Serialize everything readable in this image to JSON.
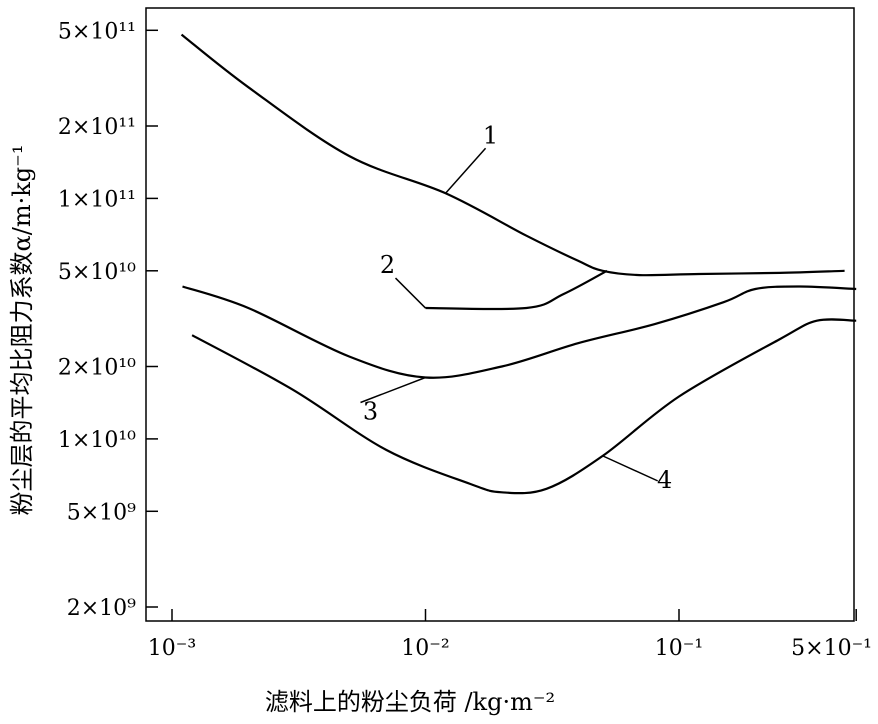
{
  "chart_data": {
    "type": "line",
    "title": "",
    "xlabel": "滤料上的粉尘负荷 /kg·m⁻²",
    "ylabel": "粉尘层的平均比阻力系数α/m·kg⁻¹",
    "x_scale": "log",
    "y_scale": "log",
    "x_ticks": [
      {
        "label": "10⁻³",
        "value": 0.001
      },
      {
        "label": "10⁻²",
        "value": 0.01
      },
      {
        "label": "10⁻¹",
        "value": 0.1
      },
      {
        "label": "5×10⁻¹",
        "value": 0.5
      }
    ],
    "y_ticks": [
      {
        "label": "5×10¹¹",
        "value": 500000000000.0
      },
      {
        "label": "2×10¹¹",
        "value": 200000000000.0
      },
      {
        "label": "1×10¹¹",
        "value": 100000000000.0
      },
      {
        "label": "5×10¹⁰",
        "value": 50000000000.0
      },
      {
        "label": "2×10¹⁰",
        "value": 20000000000.0
      },
      {
        "label": "1×10¹⁰",
        "value": 10000000000.0
      },
      {
        "label": "5×10⁹",
        "value": 5000000000.0
      },
      {
        "label": "2×10⁹",
        "value": 2000000000.0
      }
    ],
    "grid": false,
    "legend": "none",
    "series": [
      {
        "label": "1",
        "points": [
          [
            0.00109,
            480000000000.0
          ],
          [
            0.002,
            290000000000.0
          ],
          [
            0.005,
            150000000000.0
          ],
          [
            0.012,
            105000000000.0
          ],
          [
            0.025,
            70000000000.0
          ],
          [
            0.04,
            55000000000.0
          ],
          [
            0.05,
            50000000000.0
          ],
          [
            0.07,
            48000000000.0
          ],
          [
            0.12,
            48500000000.0
          ],
          [
            0.25,
            49000000000.0
          ],
          [
            0.45,
            50000000000.0
          ]
        ]
      },
      {
        "label": "2",
        "points": [
          [
            0.01,
            35000000000.0
          ],
          [
            0.025,
            35000000000.0
          ],
          [
            0.035,
            40000000000.0
          ],
          [
            0.052,
            50000000000.0
          ]
        ]
      },
      {
        "label": "3",
        "points": [
          [
            0.0011,
            43000000000.0
          ],
          [
            0.002,
            35000000000.0
          ],
          [
            0.005,
            22000000000.0
          ],
          [
            0.01,
            18000000000.0
          ],
          [
            0.02,
            20000000000.0
          ],
          [
            0.04,
            25000000000.0
          ],
          [
            0.08,
            30000000000.0
          ],
          [
            0.15,
            37000000000.0
          ],
          [
            0.2,
            42000000000.0
          ],
          [
            0.3,
            43000000000.0
          ],
          [
            0.5,
            42000000000.0
          ]
        ]
      },
      {
        "label": "4",
        "points": [
          [
            0.0012,
            27000000000.0
          ],
          [
            0.003,
            16000000000.0
          ],
          [
            0.007,
            9000000000.0
          ],
          [
            0.015,
            6500000000.0
          ],
          [
            0.02,
            6000000000.0
          ],
          [
            0.03,
            6200000000.0
          ],
          [
            0.05,
            8500000000.0
          ],
          [
            0.1,
            15000000000.0
          ],
          [
            0.25,
            26000000000.0
          ],
          [
            0.35,
            31000000000.0
          ],
          [
            0.5,
            31000000000.0
          ]
        ]
      }
    ]
  }
}
